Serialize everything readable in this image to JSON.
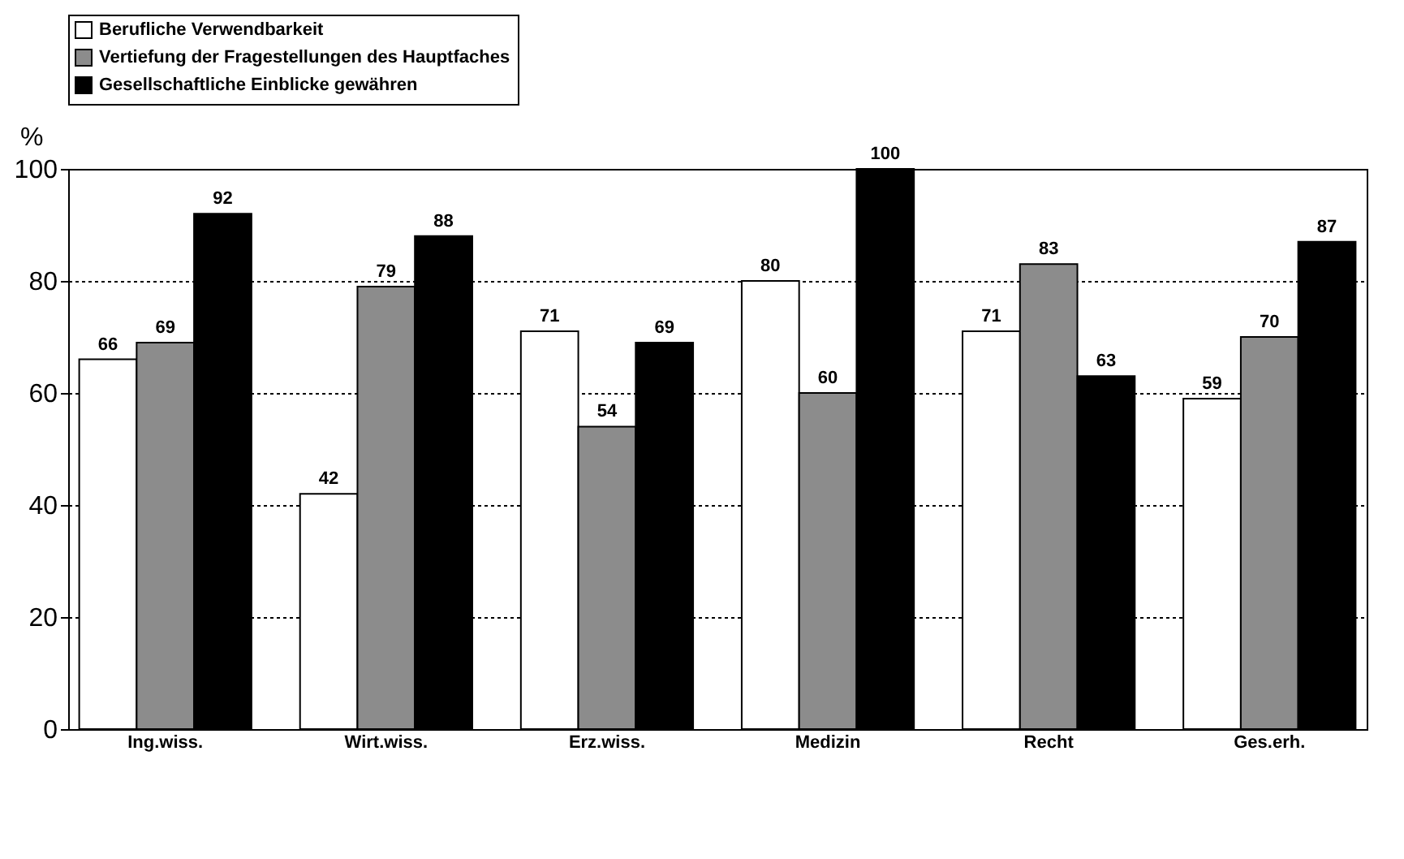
{
  "chart_data": {
    "type": "bar",
    "ylabel": "%",
    "categories": [
      "Ing.wiss.",
      "Wirt.wiss.",
      "Erz.wiss.",
      "Medizin",
      "Recht",
      "Ges.erh."
    ],
    "series": [
      {
        "name": "Berufliche Verwendbarkeit",
        "color": "#ffffff",
        "values": [
          66,
          42,
          71,
          80,
          71,
          59
        ]
      },
      {
        "name": "Vertiefung der Fragestellungen des Hauptfaches",
        "color": "#8c8c8c",
        "values": [
          69,
          79,
          54,
          60,
          83,
          70
        ]
      },
      {
        "name": "Gesellschaftliche Einblicke gewähren",
        "color": "#000000",
        "values": [
          92,
          88,
          69,
          100,
          63,
          87
        ]
      }
    ],
    "ylim": [
      0,
      100
    ],
    "yticks": [
      0,
      20,
      40,
      60,
      80,
      100
    ],
    "grid": "y",
    "legend": "top",
    "data_labels": true
  }
}
